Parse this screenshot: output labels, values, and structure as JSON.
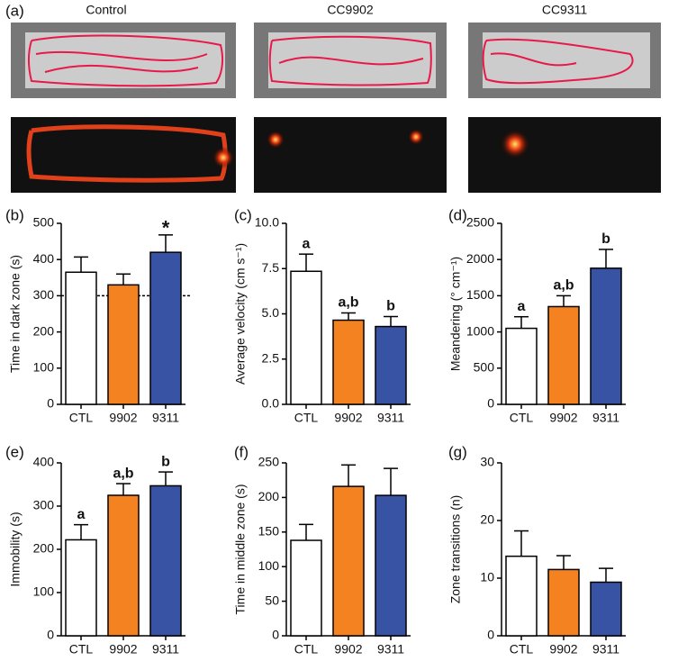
{
  "panel_a": {
    "label": "(a)",
    "columns": [
      "Control",
      "CC9902",
      "CC9311"
    ]
  },
  "chart_data": [
    {
      "type": "bar",
      "panel": "(b)",
      "y_label": "Time in dark zone (s)",
      "categories": [
        "CTL",
        "9902",
        "9311"
      ],
      "values": [
        365,
        330,
        420
      ],
      "errors": [
        42,
        30,
        48
      ],
      "colors": [
        "#ffffff",
        "#f58220",
        "#3953a4"
      ],
      "bar_labels": [
        null,
        null,
        "*"
      ],
      "reference_line": 300,
      "ylim": [
        0,
        500
      ],
      "yticks": [
        0,
        100,
        200,
        300,
        400,
        500
      ]
    },
    {
      "type": "bar",
      "panel": "(c)",
      "y_label": "Average velocity (cm s⁻¹)",
      "categories": [
        "CTL",
        "9902",
        "9311"
      ],
      "values": [
        7.35,
        4.65,
        4.3
      ],
      "errors": [
        0.95,
        0.4,
        0.55
      ],
      "colors": [
        "#ffffff",
        "#f58220",
        "#3953a4"
      ],
      "bar_labels": [
        "a",
        "a,b",
        "b"
      ],
      "ylim": [
        0,
        10
      ],
      "yticks": [
        {
          "value": 0,
          "label": "0.0"
        },
        {
          "value": 2.5,
          "label": "2.5"
        },
        {
          "value": 5,
          "label": "5.0"
        },
        {
          "value": 7.5,
          "label": "7.5"
        },
        {
          "value": 10,
          "label": "10.0"
        }
      ]
    },
    {
      "type": "bar",
      "panel": "(d)",
      "y_label": "Meandering (° cm⁻¹)",
      "categories": [
        "CTL",
        "9902",
        "9311"
      ],
      "values": [
        1050,
        1350,
        1880
      ],
      "errors": [
        160,
        150,
        260
      ],
      "colors": [
        "#ffffff",
        "#f58220",
        "#3953a4"
      ],
      "bar_labels": [
        "a",
        "a,b",
        "b"
      ],
      "ylim": [
        0,
        2500
      ],
      "yticks": [
        0,
        500,
        1000,
        1500,
        2000,
        2500
      ]
    },
    {
      "type": "bar",
      "panel": "(e)",
      "y_label": "Immobility (s)",
      "categories": [
        "CTL",
        "9902",
        "9311"
      ],
      "values": [
        222,
        325,
        347
      ],
      "errors": [
        35,
        27,
        32
      ],
      "colors": [
        "#ffffff",
        "#f58220",
        "#3953a4"
      ],
      "bar_labels": [
        "a",
        "a,b",
        "b"
      ],
      "ylim": [
        0,
        400
      ],
      "yticks": [
        0,
        100,
        200,
        300,
        400
      ]
    },
    {
      "type": "bar",
      "panel": "(f)",
      "y_label": "Time in middle zone (s)",
      "categories": [
        "CTL",
        "9902",
        "9311"
      ],
      "values": [
        138,
        216,
        203
      ],
      "errors": [
        23,
        31,
        39
      ],
      "colors": [
        "#ffffff",
        "#f58220",
        "#3953a4"
      ],
      "ylim": [
        0,
        250
      ],
      "yticks": [
        0,
        50,
        100,
        150,
        200,
        250
      ]
    },
    {
      "type": "bar",
      "panel": "(g)",
      "y_label": "Zone transitions (n)",
      "categories": [
        "CTL",
        "9902",
        "9311"
      ],
      "values": [
        13.8,
        11.5,
        9.3
      ],
      "errors": [
        4.4,
        2.4,
        2.4
      ],
      "colors": [
        "#ffffff",
        "#f58220",
        "#3953a4"
      ],
      "ylim": [
        0,
        30
      ],
      "yticks": [
        0,
        10,
        20,
        30
      ]
    }
  ]
}
